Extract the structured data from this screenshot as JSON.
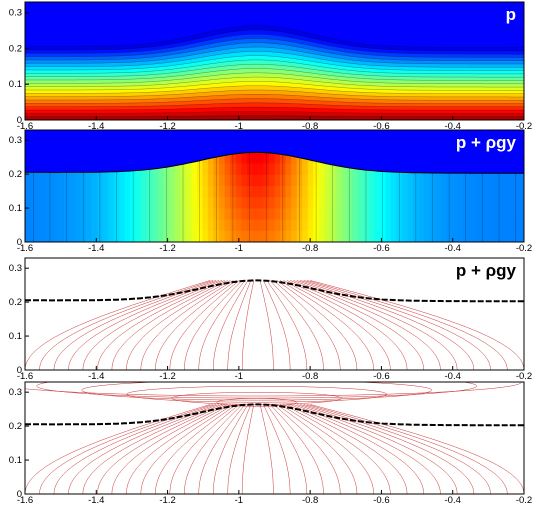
{
  "chart_data": [
    {
      "type": "contour",
      "title": "p",
      "title_color": "#ffffff",
      "fill": "colormap",
      "xlim": [
        -1.6,
        -0.2
      ],
      "ylim": [
        0,
        0.33
      ],
      "x_ticks": [
        "-1.6",
        "-1.4",
        "-1.2",
        "-1",
        "-0.8",
        "-0.6",
        "-0.4",
        "-0.2"
      ],
      "y_ticks": [
        "0",
        "0.1",
        "0.2",
        "0.3"
      ],
      "interface": {
        "x": [
          -1.6,
          -1.45,
          -1.3,
          -1.2,
          -1.1,
          -1.0,
          -0.95,
          -0.9,
          -0.8,
          -0.7,
          -0.6,
          -0.5,
          -0.4,
          -0.3,
          -0.2
        ],
        "y": [
          0.206,
          0.212,
          0.222,
          0.235,
          0.252,
          0.263,
          0.265,
          0.263,
          0.25,
          0.236,
          0.226,
          0.218,
          0.212,
          0.207,
          0.203
        ]
      },
      "field": "hydrostatic pressure, increasing downward"
    },
    {
      "type": "contour",
      "title": "p + ρgy",
      "title_color": "#ffffff",
      "fill": "colormap",
      "xlim": [
        -1.6,
        -0.2
      ],
      "ylim": [
        0,
        0.33
      ],
      "x_ticks": [
        "-1.6",
        "-1.4",
        "-1.2",
        "-1",
        "-0.8",
        "-0.6",
        "-0.4",
        "-0.2"
      ],
      "y_ticks": [
        "0",
        "0.1",
        "0.2",
        "0.3"
      ],
      "peak_x": -0.95,
      "field": "dynamic pressure, maximum beneath crest"
    },
    {
      "type": "streamlines",
      "title": "p + ρgy",
      "title_color": "#000000",
      "line_color": "#cc3333",
      "interface_color": "#000000",
      "xlim": [
        -1.6,
        -0.2
      ],
      "ylim": [
        0,
        0.33
      ],
      "x_ticks": [
        "-1.6",
        "-1.4",
        "-1.2",
        "-1",
        "-0.8",
        "-0.6",
        "-0.4",
        "-0.2"
      ],
      "y_ticks": [
        "0",
        "0.1",
        "0.2",
        "0.3"
      ],
      "region": "below interface"
    },
    {
      "type": "streamlines",
      "title": "",
      "line_color": "#cc3333",
      "interface_color": "#000000",
      "xlim": [
        -1.6,
        -0.2
      ],
      "ylim": [
        0,
        0.33
      ],
      "x_ticks": [
        "-1.6",
        "-1.4",
        "-1.2",
        "-1",
        "-0.8",
        "-0.6",
        "-0.4",
        "-0.2"
      ],
      "y_ticks": [
        "0",
        "0.1",
        "0.2",
        "0.3"
      ],
      "region": "above and below interface"
    }
  ]
}
